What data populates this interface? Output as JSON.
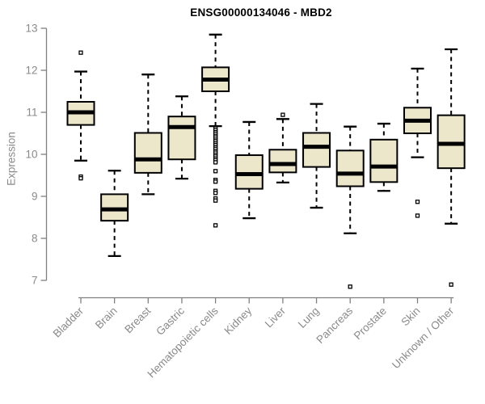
{
  "chart_data": {
    "type": "box",
    "title": "ENSG00000134046 - MBD2",
    "ylabel": "Expression",
    "xlabel": "",
    "ylim": [
      7,
      13
    ],
    "yticks": [
      7,
      8,
      9,
      10,
      11,
      12,
      13
    ],
    "grid": false,
    "x_label_rotation": -45,
    "categories": [
      "Bladder",
      "Brain",
      "Breast",
      "Gastric",
      "Hematopoietic cells",
      "Kidney",
      "Liver",
      "Lung",
      "Pancreas",
      "Prostate",
      "Skin",
      "Unknown / Other"
    ],
    "boxes": [
      {
        "category": "Bladder",
        "whisker_low": 9.85,
        "q1": 10.7,
        "median": 11.0,
        "q3": 11.25,
        "whisker_high": 11.97,
        "outliers": [
          12.42,
          9.47,
          9.43
        ]
      },
      {
        "category": "Brain",
        "whisker_low": 7.58,
        "q1": 8.42,
        "median": 8.69,
        "q3": 9.05,
        "whisker_high": 9.61,
        "outliers": []
      },
      {
        "category": "Breast",
        "whisker_low": 9.05,
        "q1": 9.56,
        "median": 9.88,
        "q3": 10.51,
        "whisker_high": 11.9,
        "outliers": []
      },
      {
        "category": "Gastric",
        "whisker_low": 9.42,
        "q1": 9.88,
        "median": 10.65,
        "q3": 10.9,
        "whisker_high": 11.38,
        "outliers": []
      },
      {
        "category": "Hematopoietic cells",
        "whisker_low": 10.67,
        "q1": 11.5,
        "median": 11.78,
        "q3": 12.07,
        "whisker_high": 12.85,
        "outliers": [
          10.62,
          10.58,
          10.53,
          10.49,
          10.44,
          10.4,
          10.35,
          10.31,
          10.26,
          10.22,
          10.17,
          10.13,
          10.08,
          10.04,
          9.99,
          9.95,
          9.9,
          9.86,
          9.81,
          9.6,
          9.39,
          9.35,
          9.13,
          9.08,
          8.95,
          8.9,
          8.31
        ]
      },
      {
        "category": "Kidney",
        "whisker_low": 8.48,
        "q1": 9.18,
        "median": 9.53,
        "q3": 9.98,
        "whisker_high": 10.77,
        "outliers": []
      },
      {
        "category": "Liver",
        "whisker_low": 9.33,
        "q1": 9.57,
        "median": 9.77,
        "q3": 10.11,
        "whisker_high": 10.84,
        "outliers": [
          10.94
        ]
      },
      {
        "category": "Lung",
        "whisker_low": 8.73,
        "q1": 9.7,
        "median": 10.18,
        "q3": 10.51,
        "whisker_high": 11.2,
        "outliers": []
      },
      {
        "category": "Pancreas",
        "whisker_low": 8.12,
        "q1": 9.24,
        "median": 9.54,
        "q3": 10.09,
        "whisker_high": 10.66,
        "outliers": [
          6.85
        ]
      },
      {
        "category": "Prostate",
        "whisker_low": 9.13,
        "q1": 9.34,
        "median": 9.71,
        "q3": 10.35,
        "whisker_high": 10.73,
        "outliers": []
      },
      {
        "category": "Skin",
        "whisker_low": 9.93,
        "q1": 10.5,
        "median": 10.8,
        "q3": 11.11,
        "whisker_high": 12.04,
        "outliers": [
          8.87,
          8.54
        ]
      },
      {
        "category": "Unknown / Other",
        "whisker_low": 8.35,
        "q1": 9.67,
        "median": 10.25,
        "q3": 10.93,
        "whisker_high": 12.5,
        "outliers": [
          6.9
        ]
      }
    ],
    "style": {
      "box_fill": "#ECE6CB",
      "box_stroke": "#000000",
      "median_color": "#000000",
      "whisker_color": "#000000",
      "outlier_color": "#000000",
      "axis_color": "#808080",
      "tick_label_color": "#8a8a8a",
      "title_color": "#000000",
      "background": "#ffffff"
    }
  }
}
